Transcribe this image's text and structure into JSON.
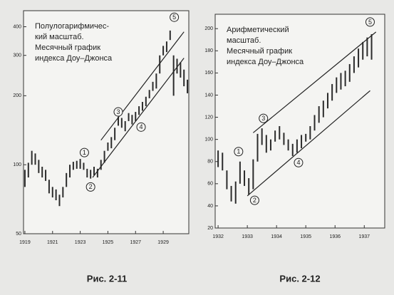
{
  "chart_data": [
    {
      "type": "range",
      "log_y": true,
      "title_lines": [
        "Полулогарифмичес-",
        "кий масштаб.",
        "Месячный график",
        "индекса Доу–Джонса"
      ],
      "caption": "Рис. 2-11",
      "xlim": [
        1918.9,
        1930.85
      ],
      "xticks": [
        1919,
        1921,
        1923,
        1925,
        1927,
        1929
      ],
      "ylim": [
        50,
        470
      ],
      "yticks": [
        50,
        100,
        200,
        300,
        400
      ],
      "color": "#2b2b2b",
      "x": [
        1919.0,
        1919.25,
        1919.5,
        1919.75,
        1920.0,
        1920.25,
        1920.5,
        1920.75,
        1921.0,
        1921.25,
        1921.5,
        1921.75,
        1922.0,
        1922.25,
        1922.5,
        1922.75,
        1923.0,
        1923.25,
        1923.5,
        1923.75,
        1924.0,
        1924.25,
        1924.5,
        1924.75,
        1925.0,
        1925.25,
        1925.5,
        1925.75,
        1926.0,
        1926.25,
        1926.5,
        1926.75,
        1927.0,
        1927.25,
        1927.5,
        1927.75,
        1928.0,
        1928.25,
        1928.5,
        1928.75,
        1929.0,
        1929.25,
        1929.5,
        1929.75,
        1930.0,
        1930.25,
        1930.5,
        1930.75
      ],
      "low": [
        80,
        88,
        100,
        100,
        92,
        88,
        85,
        75,
        72,
        70,
        66,
        72,
        80,
        88,
        95,
        96,
        96,
        95,
        88,
        87,
        90,
        88,
        95,
        102,
        115,
        118,
        128,
        148,
        145,
        140,
        155,
        150,
        155,
        165,
        172,
        180,
        195,
        210,
        215,
        250,
        300,
        310,
        350,
        200,
        250,
        240,
        220,
        205
      ],
      "high": [
        95,
        102,
        115,
        112,
        105,
        98,
        95,
        86,
        80,
        78,
        74,
        80,
        92,
        100,
        103,
        104,
        106,
        102,
        96,
        95,
        98,
        96,
        105,
        115,
        125,
        132,
        145,
        162,
        160,
        155,
        168,
        165,
        170,
        180,
        188,
        198,
        212,
        230,
        250,
        300,
        330,
        345,
        385,
        300,
        290,
        280,
        260,
        235
      ],
      "trend_lines": [
        {
          "x": [
            1924.5,
            1930.5
          ],
          "y": [
            128,
            380
          ]
        },
        {
          "x": [
            1923.9,
            1930.5
          ],
          "y": [
            88,
            292
          ]
        }
      ],
      "annotations": [
        {
          "label": "1",
          "x": 1923.3,
          "y": 113
        },
        {
          "label": "2",
          "x": 1923.75,
          "y": 80
        },
        {
          "label": "3",
          "x": 1925.75,
          "y": 170
        },
        {
          "label": "4",
          "x": 1927.4,
          "y": 146
        },
        {
          "label": "5",
          "x": 1929.8,
          "y": 440
        }
      ]
    },
    {
      "type": "range",
      "log_y": false,
      "title_lines": [
        "Арифметический",
        "масштаб.",
        "Месячный график",
        "индекса Доу–Джонса"
      ],
      "caption": "Рис. 2-12",
      "xlim": [
        1931.9,
        1937.7
      ],
      "xticks": [
        1932,
        1933,
        1934,
        1935,
        1936,
        1937
      ],
      "ylim": [
        20,
        213
      ],
      "yticks": [
        20,
        40,
        60,
        80,
        100,
        120,
        140,
        160,
        180,
        200
      ],
      "color": "#2b2b2b",
      "x": [
        1932.0,
        1932.15,
        1932.3,
        1932.45,
        1932.6,
        1932.75,
        1932.9,
        1933.05,
        1933.2,
        1933.35,
        1933.5,
        1933.65,
        1933.8,
        1933.95,
        1934.1,
        1934.25,
        1934.4,
        1934.55,
        1934.7,
        1934.85,
        1935.0,
        1935.15,
        1935.3,
        1935.45,
        1935.6,
        1935.75,
        1935.9,
        1936.05,
        1936.2,
        1936.35,
        1936.5,
        1936.65,
        1936.8,
        1936.95,
        1937.1,
        1937.25
      ],
      "low": [
        75,
        72,
        55,
        44,
        42,
        60,
        58,
        50,
        55,
        80,
        95,
        88,
        90,
        98,
        100,
        95,
        90,
        85,
        88,
        92,
        98,
        100,
        108,
        115,
        120,
        128,
        135,
        142,
        145,
        148,
        152,
        160,
        165,
        172,
        175,
        172
      ],
      "high": [
        90,
        88,
        72,
        58,
        62,
        80,
        72,
        65,
        82,
        105,
        110,
        104,
        100,
        108,
        112,
        106,
        100,
        96,
        100,
        104,
        105,
        112,
        122,
        130,
        135,
        142,
        150,
        156,
        160,
        162,
        168,
        175,
        182,
        188,
        192,
        195
      ],
      "trend_lines": [
        {
          "x": [
            1933.2,
            1937.4
          ],
          "y": [
            106,
            197
          ]
        },
        {
          "x": [
            1933.0,
            1937.2
          ],
          "y": [
            49,
            144
          ]
        }
      ],
      "annotations": [
        {
          "label": "1",
          "x": 1932.7,
          "y": 89
        },
        {
          "label": "2",
          "x": 1933.25,
          "y": 45
        },
        {
          "label": "3",
          "x": 1933.55,
          "y": 119
        },
        {
          "label": "4",
          "x": 1934.75,
          "y": 79
        },
        {
          "label": "5",
          "x": 1937.2,
          "y": 206
        }
      ]
    }
  ]
}
